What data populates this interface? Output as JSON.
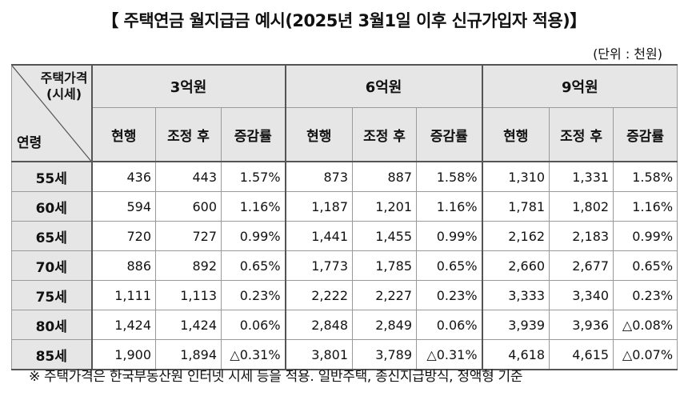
{
  "title": "【 주택연금 월지급금 예시(2025년 3월1일 이후 신규가입자 적용)】",
  "unit": "(단위 : 천원)",
  "corner": {
    "top_line1": "주택가격",
    "top_line2": "(시세)",
    "bottom": "연령"
  },
  "price_groups": [
    "3억원",
    "6억원",
    "9억원"
  ],
  "sub_headers": [
    "현행",
    "조정 후",
    "증감률"
  ],
  "rows": [
    {
      "age": "55세",
      "cells": [
        "436",
        "443",
        "1.57%",
        "873",
        "887",
        "1.58%",
        "1,310",
        "1,331",
        "1.58%"
      ]
    },
    {
      "age": "60세",
      "cells": [
        "594",
        "600",
        "1.16%",
        "1,187",
        "1,201",
        "1.16%",
        "1,781",
        "1,802",
        "1.16%"
      ]
    },
    {
      "age": "65세",
      "cells": [
        "720",
        "727",
        "0.99%",
        "1,441",
        "1,455",
        "0.99%",
        "2,162",
        "2,183",
        "0.99%"
      ]
    },
    {
      "age": "70세",
      "cells": [
        "886",
        "892",
        "0.65%",
        "1,773",
        "1,785",
        "0.65%",
        "2,660",
        "2,677",
        "0.65%"
      ]
    },
    {
      "age": "75세",
      "cells": [
        "1,111",
        "1,113",
        "0.23%",
        "2,222",
        "2,227",
        "0.23%",
        "3,333",
        "3,340",
        "0.23%"
      ]
    },
    {
      "age": "80세",
      "cells": [
        "1,424",
        "1,424",
        "0.06%",
        "2,848",
        "2,849",
        "0.06%",
        "3,939",
        "3,936",
        "△0.08%"
      ]
    },
    {
      "age": "85세",
      "cells": [
        "1,900",
        "1,894",
        "△0.31%",
        "3,801",
        "3,789",
        "△0.31%",
        "4,618",
        "4,615",
        "△0.07%"
      ]
    }
  ],
  "note": "※ 주택가격은 한국부동산원 인터넷 시세 등을 적용. 일반주택, 종신지급방식, 정액형 기준"
}
